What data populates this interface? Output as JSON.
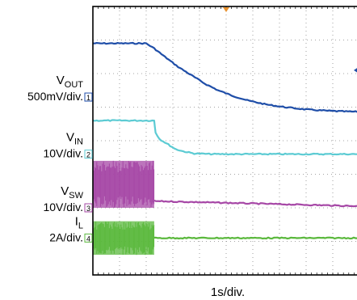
{
  "chart_data": {
    "type": "line",
    "title": "",
    "xlabel": "1s/div.",
    "x_divisions": 10,
    "y_divisions": 8,
    "x_range_div": [
      0,
      10
    ],
    "grid": true,
    "trigger_marker": "orange-triangle-top",
    "series": [
      {
        "name": "VOUT",
        "name_main": "V",
        "name_sub": "OUT",
        "scale": "500mV/div.",
        "channel": "1",
        "color": "#1f4ea8",
        "ref_marker_div": 5.3,
        "x": [
          0,
          2,
          2.3,
          2.7,
          3.2,
          3.7,
          4.2,
          4.7,
          5.2,
          5.8,
          6.5,
          7.2,
          8,
          8.8,
          9.5,
          10
        ],
        "y": [
          6.9,
          6.9,
          6.75,
          6.5,
          6.2,
          5.95,
          5.7,
          5.5,
          5.35,
          5.2,
          5.08,
          5.0,
          4.93,
          4.89,
          4.87,
          4.86
        ]
      },
      {
        "name": "VIN",
        "name_main": "V",
        "name_sub": "IN",
        "scale": "10V/div.",
        "channel": "2",
        "color": "#5ccbd3",
        "ref_marker_div": 3.6,
        "x": [
          0,
          2.3,
          2.35,
          2.5,
          2.7,
          2.9,
          3.1,
          3.4,
          3.8,
          4.5,
          6,
          8,
          10
        ],
        "y": [
          4.6,
          4.6,
          4.25,
          4.05,
          3.95,
          3.85,
          3.75,
          3.68,
          3.62,
          3.6,
          3.6,
          3.6,
          3.6
        ]
      },
      {
        "name": "VSW",
        "name_main": "V",
        "name_sub": "SW",
        "scale": "10V/div.",
        "channel": "3",
        "color": "#a647a6",
        "ref_marker_div": 2.0,
        "switching_region_div": [
          0,
          2.3
        ],
        "switching_band_div": [
          2.0,
          3.4
        ],
        "x": [
          2.3,
          10
        ],
        "y": [
          2.2,
          2.05
        ]
      },
      {
        "name": "IL",
        "name_main": "I",
        "name_sub": "L",
        "scale": "2A/div.",
        "channel": "4",
        "color": "#5ab83c",
        "ref_marker_div": 1.1,
        "switching_region_div": [
          0,
          2.3
        ],
        "switching_band_div": [
          0.6,
          1.6
        ],
        "x": [
          2.3,
          10
        ],
        "y": [
          1.1,
          1.1
        ]
      }
    ]
  }
}
